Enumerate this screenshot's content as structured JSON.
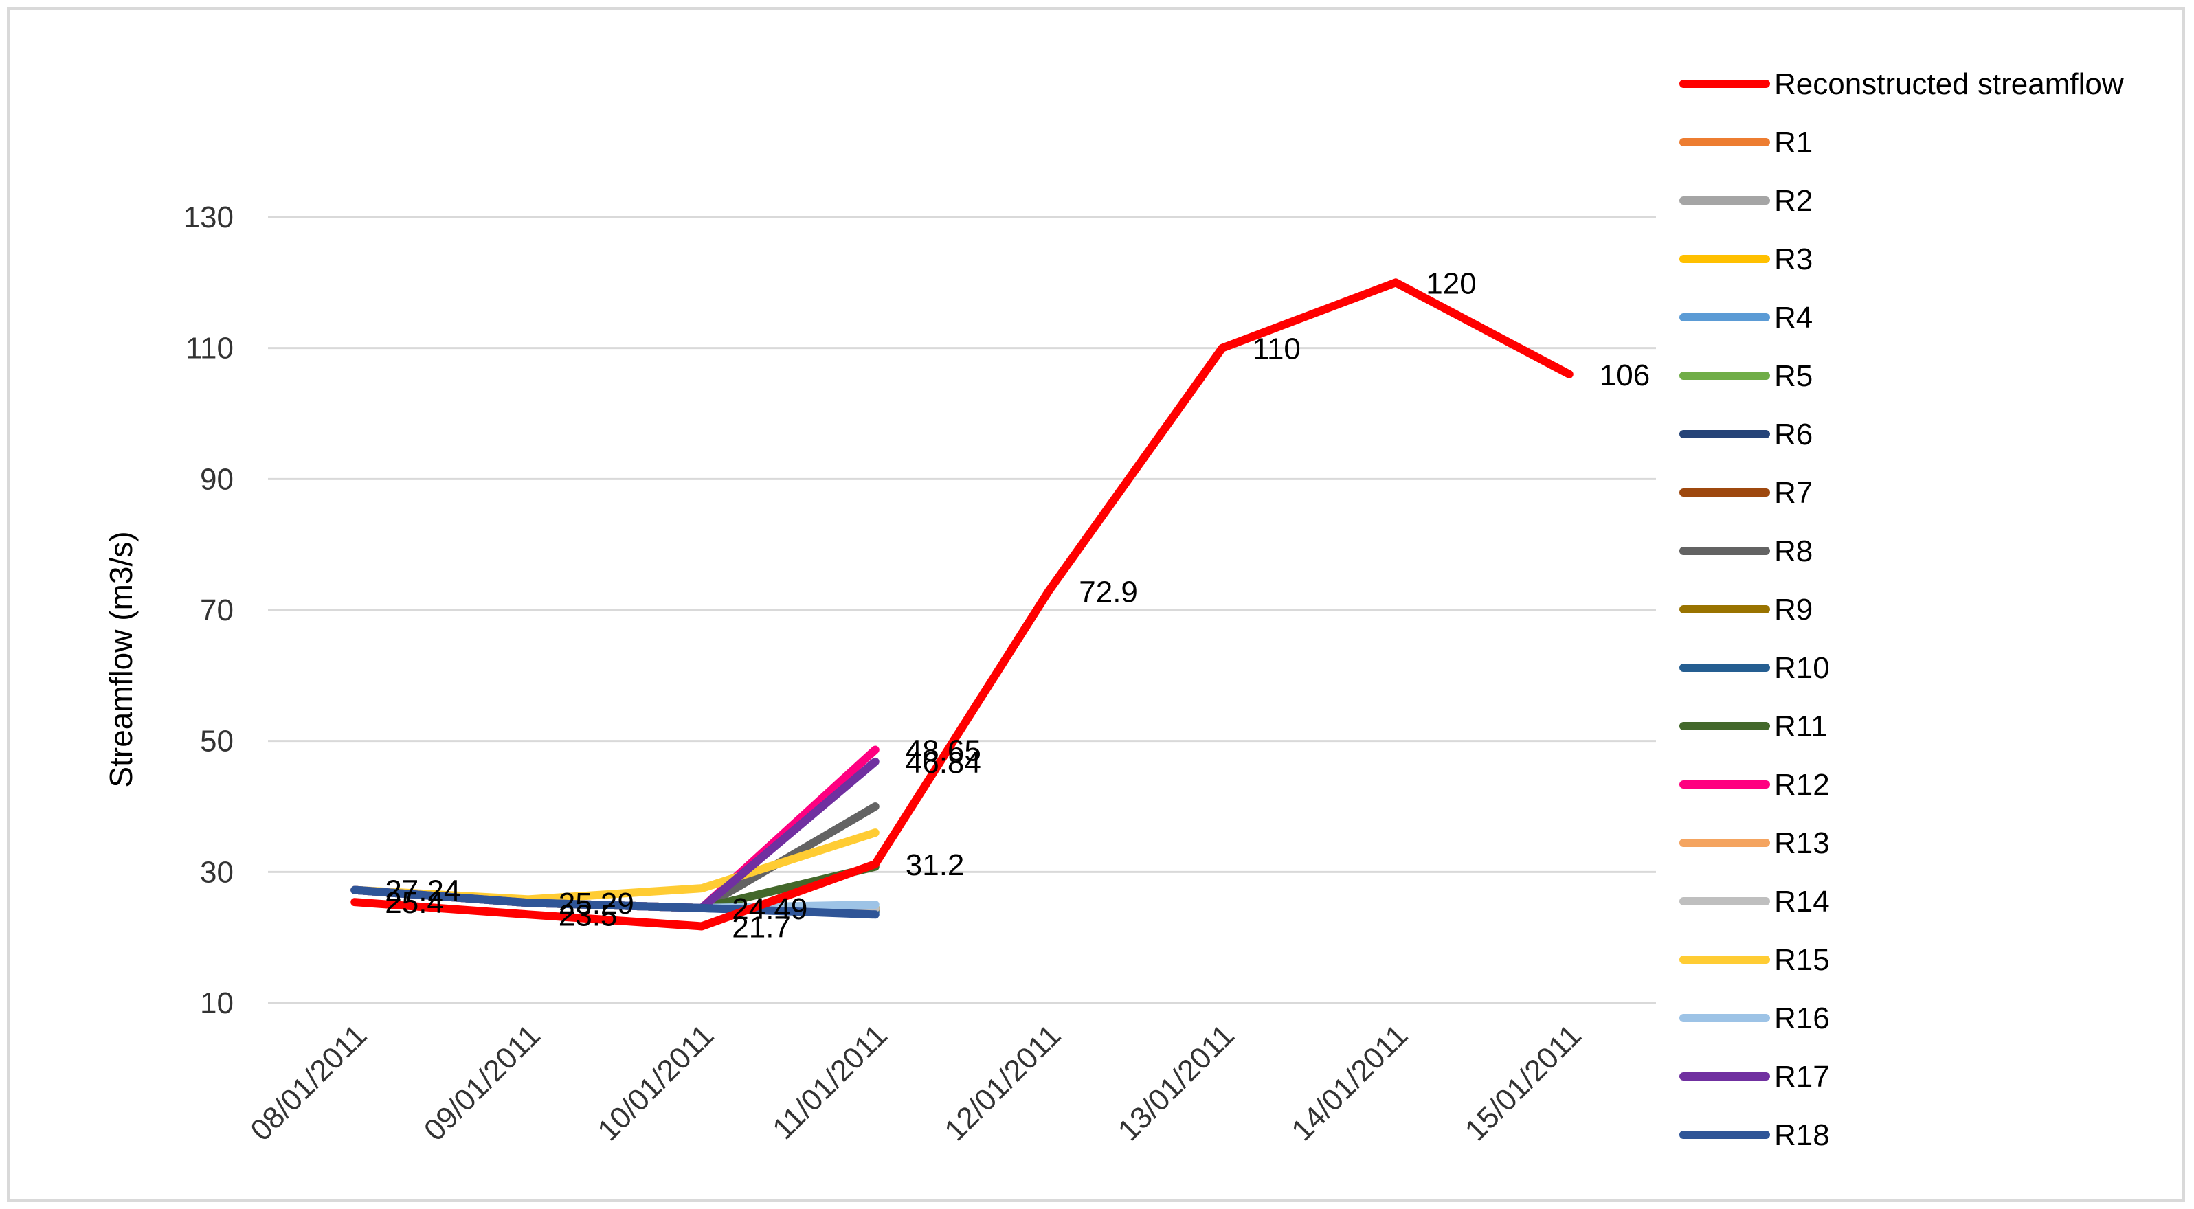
{
  "chart_data": {
    "type": "line",
    "title": "",
    "xlabel": "",
    "ylabel": "Streamflow (m3/s)",
    "ylim": [
      10,
      130
    ],
    "yticks": [
      10,
      30,
      50,
      70,
      90,
      110,
      130
    ],
    "grid": true,
    "legend_position": "right",
    "categories": [
      "08/01/2011",
      "09/01/2011",
      "10/01/2011",
      "11/01/2011",
      "12/01/2011",
      "13/01/2011",
      "14/01/2011",
      "15/01/2011"
    ],
    "series": [
      {
        "name": "Reconstructed streamflow",
        "color": "#ff0000",
        "values": [
          25.4,
          23.5,
          21.7,
          31.2,
          72.9,
          110,
          120,
          106
        ],
        "labels": [
          "25.4",
          "23.5",
          "21.7",
          "31.2",
          "72.9",
          "110",
          "120",
          "106"
        ]
      },
      {
        "name": "R1",
        "color": "#ed7d31",
        "values": [
          27.24,
          25.29,
          24.49,
          24.49,
          null,
          null,
          null,
          null
        ]
      },
      {
        "name": "R2",
        "color": "#a5a5a5",
        "values": [
          27.24,
          25.29,
          24.49,
          24.5,
          null,
          null,
          null,
          null
        ]
      },
      {
        "name": "R3",
        "color": "#ffc000",
        "values": [
          27.24,
          25.29,
          24.49,
          24.5,
          null,
          null,
          null,
          null
        ]
      },
      {
        "name": "R4",
        "color": "#5b9bd5",
        "values": [
          27.24,
          25.29,
          24.49,
          24.3,
          null,
          null,
          null,
          null
        ]
      },
      {
        "name": "R5",
        "color": "#70ad47",
        "values": [
          27.24,
          25.29,
          24.49,
          24.6,
          null,
          null,
          null,
          null
        ]
      },
      {
        "name": "R6",
        "color": "#264478",
        "values": [
          27.24,
          25.29,
          24.49,
          24.0,
          null,
          null,
          null,
          null
        ]
      },
      {
        "name": "R7",
        "color": "#9e480e",
        "values": [
          27.24,
          25.29,
          24.49,
          24.4,
          null,
          null,
          null,
          null
        ]
      },
      {
        "name": "R8",
        "color": "#636363",
        "values": [
          27.24,
          25.29,
          24.49,
          40.0,
          null,
          null,
          null,
          null
        ]
      },
      {
        "name": "R9",
        "color": "#997300",
        "values": [
          27.24,
          25.29,
          24.49,
          24.2,
          null,
          null,
          null,
          null
        ]
      },
      {
        "name": "R10",
        "color": "#255e91",
        "values": [
          27.24,
          25.29,
          24.49,
          23.8,
          null,
          null,
          null,
          null
        ]
      },
      {
        "name": "R11",
        "color": "#43682b",
        "values": [
          27.24,
          25.29,
          24.49,
          30.8,
          null,
          null,
          null,
          null
        ]
      },
      {
        "name": "R12",
        "color": "#ff0080",
        "values": [
          27.24,
          25.29,
          24.49,
          48.65,
          null,
          null,
          null,
          null
        ],
        "labels": [
          null,
          null,
          null,
          "48.65",
          null,
          null,
          null,
          null
        ]
      },
      {
        "name": "R13",
        "color": "#f4a460",
        "values": [
          27.24,
          25.29,
          24.49,
          24.45,
          null,
          null,
          null,
          null
        ]
      },
      {
        "name": "R14",
        "color": "#bfbfbf",
        "values": [
          27.24,
          25.29,
          24.49,
          24.4,
          null,
          null,
          null,
          null
        ]
      },
      {
        "name": "R15",
        "color": "#ffcc33",
        "values": [
          27.24,
          25.8,
          27.5,
          36.0,
          null,
          null,
          null,
          null
        ]
      },
      {
        "name": "R16",
        "color": "#9dc3e6",
        "values": [
          27.24,
          25.29,
          24.49,
          25.0,
          null,
          null,
          null,
          null
        ]
      },
      {
        "name": "R17",
        "color": "#7030a0",
        "values": [
          27.24,
          25.29,
          24.49,
          46.84,
          null,
          null,
          null,
          null
        ],
        "labels": [
          null,
          null,
          null,
          "46.84",
          null,
          null,
          null,
          null
        ]
      },
      {
        "name": "R18",
        "color": "#2f5597",
        "values": [
          27.24,
          25.29,
          24.49,
          23.5,
          null,
          null,
          null,
          null
        ],
        "labels": [
          "27.24",
          "25.29",
          "24.49",
          null,
          null,
          null,
          null,
          null
        ]
      }
    ]
  }
}
